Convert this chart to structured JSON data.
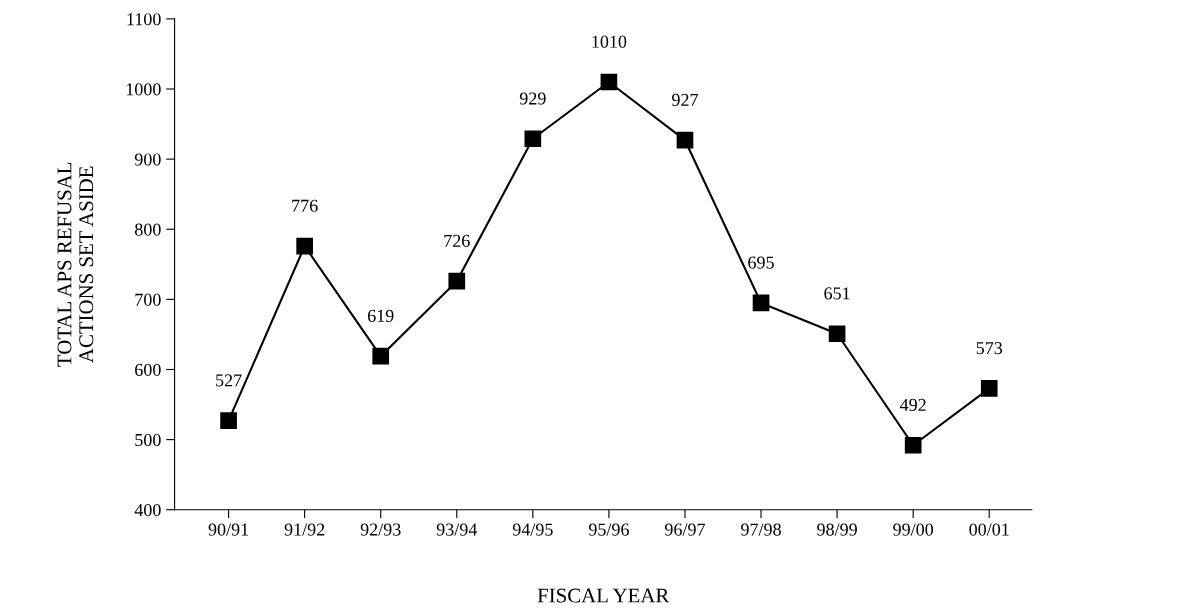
{
  "chart_data": {
    "type": "line",
    "xlabel": "FISCAL YEAR",
    "ylabel": "TOTAL APS REFUSAL\nACTIONS SET ASIDE",
    "categories": [
      "90/91",
      "91/92",
      "92/93",
      "93/94",
      "94/95",
      "95/96",
      "96/97",
      "97/98",
      "98/99",
      "99/00",
      "00/01"
    ],
    "series": [
      {
        "color": "#000000",
        "values": [
          527,
          776,
          619,
          726,
          929,
          1010,
          927,
          695,
          651,
          492,
          573
        ]
      }
    ],
    "ylim": [
      400,
      1100
    ],
    "yticks": [
      400,
      500,
      600,
      700,
      800,
      900,
      1000,
      1100
    ],
    "marker": "square",
    "line_style": "solid",
    "grid": false,
    "data_labels": true
  }
}
